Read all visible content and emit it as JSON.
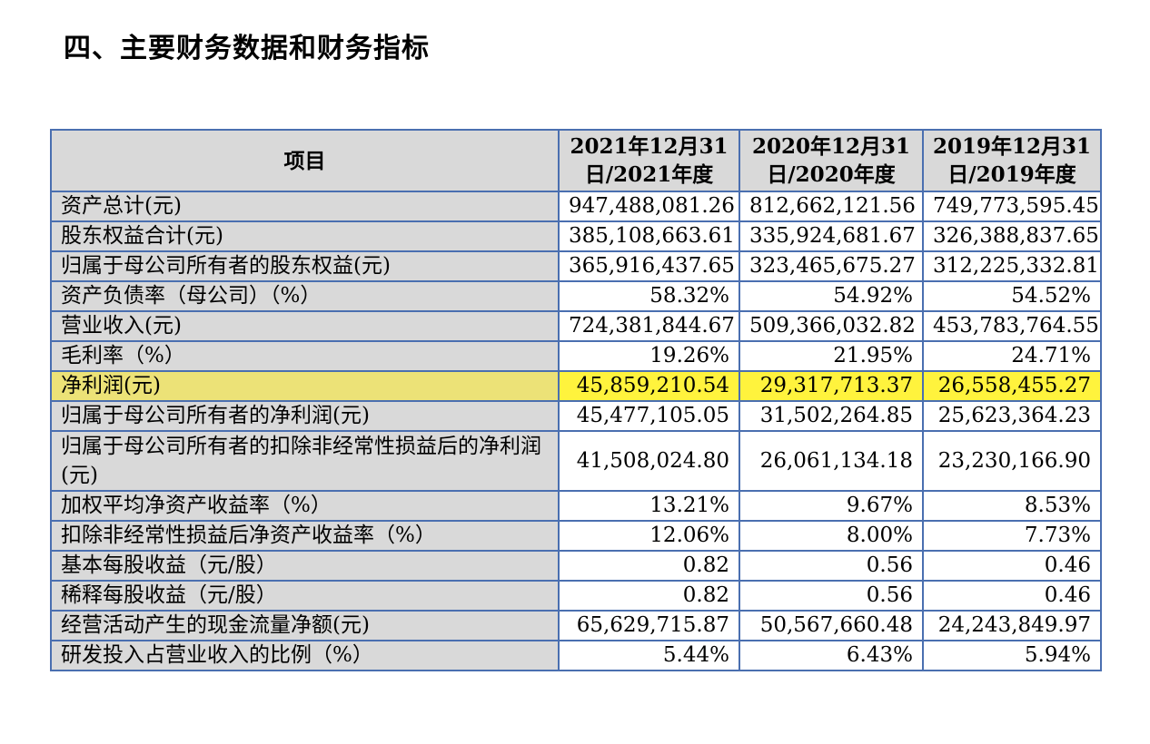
{
  "title": "四、主要财务数据和财务指标",
  "table": {
    "headers": [
      "项目",
      "2021年12月31日/2021年度",
      "2020年12月31日/2020年度",
      "2019年12月31日/2019年度"
    ],
    "rows": [
      {
        "label": "资产总计(元)",
        "values": [
          "947,488,081.26",
          "812,662,121.56",
          "749,773,595.45"
        ]
      },
      {
        "label": "股东权益合计(元)",
        "values": [
          "385,108,663.61",
          "335,924,681.67",
          "326,388,837.65"
        ]
      },
      {
        "label": "归属于母公司所有者的股东权益(元)",
        "values": [
          "365,916,437.65",
          "323,465,675.27",
          "312,225,332.81"
        ]
      },
      {
        "label": "资产负债率（母公司）（%）",
        "values": [
          "58.32%",
          "54.92%",
          "54.52%"
        ]
      },
      {
        "label": "营业收入(元)",
        "values": [
          "724,381,844.67",
          "509,366,032.82",
          "453,783,764.55"
        ]
      },
      {
        "label": "毛利率（%）",
        "values": [
          "19.26%",
          "21.95%",
          "24.71%"
        ]
      },
      {
        "label": "净利润(元)",
        "values": [
          "45,859,210.54",
          "29,317,713.37",
          "26,558,455.27"
        ],
        "highlight": true
      },
      {
        "label": "归属于母公司所有者的净利润(元)",
        "values": [
          "45,477,105.05",
          "31,502,264.85",
          "25,623,364.23"
        ]
      },
      {
        "label": "归属于母公司所有者的扣除非经常性损益后的净利润(元)",
        "values": [
          "41,508,024.80",
          "26,061,134.18",
          "23,230,166.90"
        ]
      },
      {
        "label": "加权平均净资产收益率（%）",
        "values": [
          "13.21%",
          "9.67%",
          "8.53%"
        ]
      },
      {
        "label": "扣除非经常性损益后净资产收益率（%）",
        "values": [
          "12.06%",
          "8.00%",
          "7.73%"
        ]
      },
      {
        "label": "基本每股收益（元/股）",
        "values": [
          "0.82",
          "0.56",
          "0.46"
        ]
      },
      {
        "label": "稀释每股收益（元/股）",
        "values": [
          "0.82",
          "0.56",
          "0.46"
        ]
      },
      {
        "label": "经营活动产生的现金流量净额(元)",
        "values": [
          "65,629,715.87",
          "50,567,660.48",
          "24,243,849.97"
        ]
      },
      {
        "label": "研发投入占营业收入的比例（%）",
        "values": [
          "5.44%",
          "6.43%",
          "5.94%"
        ]
      }
    ]
  },
  "colors": {
    "border": "#4a6fb0",
    "label_bg": "#d9d9d9",
    "highlight_label_bg": "#ece277",
    "highlight_value_bg": "#fff33d"
  }
}
